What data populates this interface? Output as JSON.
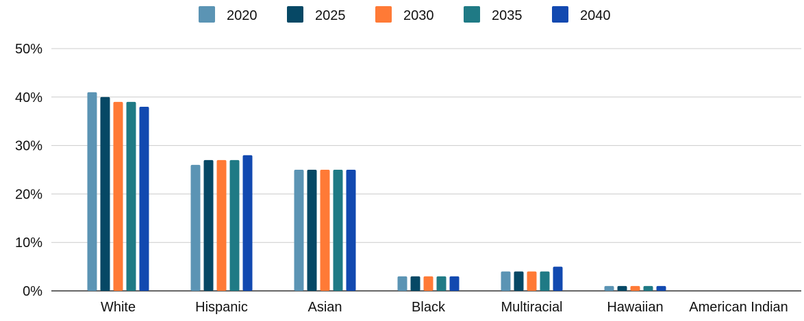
{
  "chart_data": {
    "type": "bar",
    "title": "",
    "xlabel": "",
    "ylabel": "",
    "categories": [
      "White",
      "Hispanic",
      "Asian",
      "Black",
      "Multiracial",
      "Hawaiian",
      "American Indian"
    ],
    "series": [
      {
        "name": "2020",
        "color": "#5b94b4",
        "values": [
          41,
          26,
          25,
          3,
          4,
          1,
          0
        ]
      },
      {
        "name": "2025",
        "color": "#064865",
        "values": [
          40,
          27,
          25,
          3,
          4,
          1,
          0
        ]
      },
      {
        "name": "2030",
        "color": "#ff7a36",
        "values": [
          39,
          27,
          25,
          3,
          4,
          1,
          0
        ]
      },
      {
        "name": "2035",
        "color": "#1f7a85",
        "values": [
          39,
          27,
          25,
          3,
          4,
          1,
          0
        ]
      },
      {
        "name": "2040",
        "color": "#1249b0",
        "values": [
          38,
          28,
          25,
          3,
          5,
          1,
          0
        ]
      }
    ],
    "ylim": [
      0,
      50
    ],
    "y_ticks": [
      "0%",
      "10%",
      "20%",
      "30%",
      "40%",
      "50%"
    ],
    "grid": true,
    "legend_position": "top-center"
  }
}
